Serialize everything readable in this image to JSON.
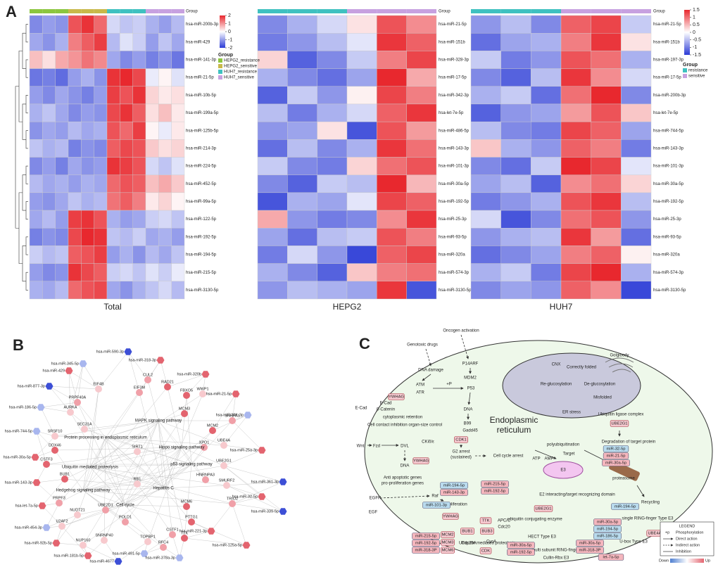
{
  "panels": {
    "a": "A",
    "b": "B",
    "c": "C"
  },
  "legends": [
    {
      "title": "Group",
      "lim": [
        -2,
        2
      ],
      "ticks": [
        2,
        1,
        0,
        -1,
        -2
      ],
      "groups": [
        {
          "name": "HEPG2_resistance",
          "color": "#8cc63f"
        },
        {
          "name": "HEPG2_sensitive",
          "color": "#c8b94a"
        },
        {
          "name": "HUH7_resistance",
          "color": "#3fc1c0"
        },
        {
          "name": "HUH7_sensitive",
          "color": "#c7a1e0"
        }
      ]
    },
    {
      "title": "Group",
      "lim": [
        -1.5,
        1.5
      ],
      "ticks": [
        1.5,
        1,
        0.5,
        0,
        -0.5,
        -1,
        -1.5
      ],
      "groups": [
        {
          "name": "resistance",
          "color": "#3fc1c0"
        },
        {
          "name": "sensitive",
          "color": "#c7a1e0"
        }
      ]
    }
  ],
  "heatmaps": [
    {
      "title": "Total",
      "group_label": "Group",
      "legend": 0,
      "column_groups": [
        0,
        0,
        0,
        1,
        1,
        1,
        2,
        2,
        2,
        3,
        3,
        3
      ],
      "rows": [
        "hsa-miR-200b-3p",
        "hsa-miR-429",
        "hsa-miR-141-3p",
        "hsa-miR-21-5p",
        "hsa-miR-10b-5p",
        "hsa-miR-199a-5p",
        "hsa-miR-125b-5p",
        "hsa-miR-214-3p",
        "hsa-miR-224-5p",
        "hsa-miR-452-5p",
        "hsa-miR-99a-5p",
        "hsa-miR-122-5p",
        "hsa-miR-192-5p",
        "hsa-miR-194-5p",
        "hsa-miR-215-5p",
        "hsa-miR-3130-5p"
      ],
      "values": [
        [
          -1.2,
          -1.0,
          -1.1,
          1.6,
          1.9,
          1.4,
          -0.4,
          -0.6,
          -0.5,
          -0.8,
          -1.0,
          -0.7
        ],
        [
          -0.9,
          -1.1,
          -0.8,
          1.2,
          1.5,
          1.8,
          -0.7,
          -0.3,
          -0.5,
          -1.0,
          -0.6,
          -0.9
        ],
        [
          0.6,
          0.3,
          0.8,
          1.0,
          1.3,
          1.1,
          -0.9,
          -1.2,
          -1.0,
          -1.3,
          -1.1,
          -1.4
        ],
        [
          -1.4,
          -1.3,
          -1.5,
          -1.0,
          -0.8,
          -1.1,
          1.9,
          2.0,
          1.7,
          -0.2,
          0.1,
          -0.3
        ],
        [
          -1.0,
          -1.2,
          -0.9,
          -1.1,
          -1.3,
          -1.0,
          1.8,
          1.6,
          1.9,
          0.4,
          0.2,
          0.3
        ],
        [
          -0.8,
          -0.6,
          -0.9,
          -1.2,
          -1.0,
          -1.1,
          1.7,
          1.9,
          1.5,
          0.3,
          0.6,
          0.2
        ],
        [
          -1.1,
          -0.9,
          -1.0,
          -0.7,
          -0.9,
          -0.8,
          1.6,
          1.4,
          1.8,
          0.1,
          -0.2,
          0.2
        ],
        [
          -0.6,
          -0.8,
          -0.7,
          -1.3,
          -1.1,
          -1.2,
          1.5,
          1.7,
          1.6,
          0.5,
          0.3,
          0.4
        ],
        [
          -1.2,
          -1.0,
          -1.3,
          -0.9,
          -1.1,
          -1.0,
          1.9,
          1.8,
          1.6,
          -0.4,
          -0.6,
          -0.3
        ],
        [
          -0.7,
          -0.9,
          -0.8,
          -1.0,
          -0.8,
          -0.9,
          1.4,
          1.6,
          1.5,
          0.6,
          0.8,
          0.5
        ],
        [
          -1.0,
          -1.1,
          -0.9,
          -0.6,
          -0.8,
          -0.7,
          1.3,
          1.5,
          1.2,
          0.2,
          0.4,
          0.1
        ],
        [
          -0.9,
          -0.7,
          -1.0,
          1.8,
          1.9,
          1.6,
          -0.8,
          -1.0,
          -0.9,
          -0.5,
          -0.4,
          -0.6
        ],
        [
          -1.3,
          -1.1,
          -1.2,
          1.7,
          2.0,
          1.9,
          -0.6,
          -0.7,
          -0.5,
          -0.9,
          -0.8,
          -1.0
        ],
        [
          -0.5,
          -0.7,
          -0.6,
          1.5,
          1.6,
          1.8,
          -1.0,
          -0.8,
          -1.1,
          -0.7,
          -0.9,
          -0.6
        ],
        [
          -1.0,
          -1.2,
          -1.1,
          1.9,
          1.7,
          1.5,
          -0.5,
          -0.4,
          -0.6,
          -0.3,
          -0.5,
          -0.2
        ],
        [
          -0.8,
          -0.9,
          -0.7,
          1.4,
          1.6,
          1.7,
          -0.9,
          -1.1,
          -0.8,
          -0.6,
          -0.4,
          -0.7
        ]
      ]
    },
    {
      "title": "HEPG2",
      "group_label": "Group",
      "legend": 1,
      "column_groups": [
        0,
        0,
        0,
        1,
        1,
        1
      ],
      "rows": [
        "hsa-miR-21-5p",
        "hsa-miR-151b",
        "hsa-miR-328-3p",
        "hsa-miR-17-5p",
        "hsa-miR-342-3p",
        "hsa-let-7e-5p",
        "hsa-miR-486-5p",
        "hsa-miR-143-3p",
        "hsa-miR-101-3p",
        "hsa-miR-30a-5p",
        "hsa-miR-192-5p",
        "hsa-miR-25-3p",
        "hsa-miR-93-5p",
        "hsa-miR-320a",
        "hsa-miR-574-3p",
        "hsa-miR-3130-5p"
      ],
      "values": [
        [
          -0.9,
          -0.6,
          -0.3,
          0.2,
          1.2,
          0.8
        ],
        [
          -1.0,
          -0.8,
          -0.5,
          -0.2,
          1.4,
          1.1
        ],
        [
          0.3,
          -1.2,
          -0.9,
          -0.4,
          0.9,
          1.3
        ],
        [
          -0.6,
          -0.9,
          -1.1,
          -0.7,
          1.5,
          0.6
        ],
        [
          -1.2,
          -0.4,
          -0.8,
          0.1,
          1.3,
          0.9
        ],
        [
          -0.5,
          -1.0,
          -0.6,
          -0.3,
          1.1,
          1.4
        ],
        [
          -0.8,
          -0.7,
          0.2,
          -1.3,
          1.2,
          0.7
        ],
        [
          -1.1,
          -0.5,
          -0.9,
          -0.6,
          1.4,
          1.0
        ],
        [
          -0.4,
          -0.9,
          -1.0,
          0.3,
          1.0,
          1.2
        ],
        [
          -0.9,
          -1.2,
          -0.4,
          -0.5,
          1.5,
          0.5
        ],
        [
          -1.3,
          -0.6,
          -0.7,
          -0.2,
          1.3,
          1.1
        ],
        [
          0.6,
          -0.8,
          -1.0,
          -0.9,
          0.8,
          1.4
        ],
        [
          -0.7,
          -1.1,
          -0.5,
          -0.4,
          1.2,
          0.9
        ],
        [
          -1.0,
          -0.3,
          -0.8,
          -1.4,
          1.1,
          1.3
        ],
        [
          -0.6,
          -0.9,
          -1.2,
          0.4,
          0.9,
          1.0
        ],
        [
          -0.8,
          -0.5,
          -0.6,
          -0.7,
          1.4,
          -1.3
        ]
      ]
    },
    {
      "title": "HUH7",
      "group_label": "Group",
      "legend": 1,
      "column_groups": [
        0,
        0,
        0,
        1,
        1,
        1
      ],
      "rows": [
        "hsa-miR-21-5p",
        "hsa-miR-151b",
        "hsa-miR-197-3p",
        "hsa-miR-17-5p",
        "hsa-miR-200b-3p",
        "hsa-let-7e-5p",
        "hsa-miR-744-5p",
        "hsa-miR-143-3p",
        "hsa-miR-101-3p",
        "hsa-miR-30a-5p",
        "hsa-miR-192-5p",
        "hsa-miR-25-3p",
        "hsa-miR-93-5p",
        "hsa-miR-320a",
        "hsa-miR-574-3p",
        "hsa-miR-3130-5p"
      ],
      "values": [
        [
          -0.8,
          -0.5,
          -0.9,
          1.1,
          1.3,
          -0.4
        ],
        [
          -1.1,
          -0.7,
          -0.6,
          0.9,
          1.4,
          0.2
        ],
        [
          -0.4,
          -1.0,
          -0.8,
          1.2,
          1.0,
          -0.6
        ],
        [
          -0.9,
          -1.2,
          -0.5,
          1.4,
          0.8,
          -0.3
        ],
        [
          -0.6,
          -0.4,
          -1.1,
          1.0,
          1.5,
          -0.9
        ],
        [
          -1.2,
          -0.8,
          -0.7,
          0.7,
          1.2,
          0.4
        ],
        [
          -0.5,
          -0.9,
          -1.0,
          1.3,
          1.1,
          -0.7
        ],
        [
          0.4,
          -0.6,
          -0.8,
          1.1,
          0.9,
          -1.0
        ],
        [
          -0.9,
          -1.1,
          -0.4,
          1.5,
          1.3,
          -0.2
        ],
        [
          -0.7,
          -0.5,
          -1.2,
          0.8,
          1.0,
          0.3
        ],
        [
          -1.0,
          -0.8,
          -0.6,
          1.2,
          1.4,
          -0.5
        ],
        [
          -0.3,
          -1.3,
          -0.9,
          1.0,
          1.2,
          -0.8
        ],
        [
          -0.8,
          -0.6,
          -0.5,
          1.4,
          0.7,
          -1.1
        ],
        [
          -1.1,
          -0.9,
          -0.7,
          0.9,
          1.1,
          0.1
        ],
        [
          -0.6,
          -0.4,
          -1.0,
          1.3,
          1.5,
          -0.6
        ],
        [
          -0.9,
          -0.7,
          -0.8,
          1.1,
          0.8,
          -1.4
        ]
      ]
    }
  ],
  "network": {
    "pathways": [
      "MAPK signaling pathway",
      "Protein processing in endoplasmic reticulum",
      "Hippo signaling pathway",
      "p53 signaling pathway",
      "Ubiquitin mediated proteolysis",
      "Hedgehog signaling pathway",
      "Cell cycle",
      "Hepatitis C"
    ],
    "nodes": [
      {
        "label": "hsa-miR-590-3p",
        "color": "#3d4fd6"
      },
      {
        "label": "hsa-miR-345-5p",
        "color": "#a8b6ee"
      },
      {
        "label": "hsa-miR-429",
        "color": "#e3646f"
      },
      {
        "label": "hsa-miR-877-3p",
        "color": "#3d4fd6"
      },
      {
        "label": "hsa-miR-186-5p",
        "color": "#a8b6ee"
      },
      {
        "label": "hsa-miR-744-5p",
        "color": "#a8b6ee"
      },
      {
        "label": "hsa-miR-30a-5p",
        "color": "#e3646f"
      },
      {
        "label": "hsa-miR-143-3p",
        "color": "#e3646f"
      },
      {
        "label": "hsa-let-7a-5p",
        "color": "#e3646f"
      },
      {
        "label": "hsa-miR-454-3p",
        "color": "#a8b6ee"
      },
      {
        "label": "hsa-miR-92b-5p",
        "color": "#e3646f"
      },
      {
        "label": "hsa-miR-181b-5p",
        "color": "#e3646f"
      },
      {
        "label": "hsa-miR-4677",
        "color": "#3d4fd6"
      },
      {
        "label": "hsa-miR-491-5p",
        "color": "#a8b6ee"
      },
      {
        "label": "hsa-miR-378a-3p",
        "color": "#a8b6ee"
      },
      {
        "label": "hsa-miR-221-3p",
        "color": "#e3646f"
      },
      {
        "label": "hsa-miR-125a-5p",
        "color": "#e3646f"
      },
      {
        "label": "hsa-miR-339-5p",
        "color": "#3d4fd6"
      },
      {
        "label": "hsa-miR-32-5p",
        "color": "#e3646f"
      },
      {
        "label": "hsa-miR-361-3p",
        "color": "#3d4fd6"
      },
      {
        "label": "hsa-miR-25a-3p",
        "color": "#e3646f"
      },
      {
        "label": "hsa-miR-101-3p",
        "color": "#a8b6ee"
      },
      {
        "label": "hsa-miR-21-5p",
        "color": "#e3646f"
      },
      {
        "label": "hsa-miR-320b",
        "color": "#e3646f"
      },
      {
        "label": "hsa-miR-318-3p",
        "color": "#e3646f"
      },
      {
        "label": "CUL2",
        "color": "#f0a0a8"
      },
      {
        "label": "RAD21",
        "color": "#e3646f"
      },
      {
        "label": "FBXO5",
        "color": "#e3646f"
      },
      {
        "label": "EIF3M",
        "color": "#f0a0a8"
      },
      {
        "label": "EIF4B",
        "color": "#f7c9cd"
      },
      {
        "label": "PRPF40A",
        "color": "#f0a0a8"
      },
      {
        "label": "AURKA",
        "color": "#f7c9cd"
      },
      {
        "label": "SEC31A",
        "color": "#f7c9cd"
      },
      {
        "label": "SRSF10",
        "color": "#f7c9cd"
      },
      {
        "label": "DDX46",
        "color": "#e3646f"
      },
      {
        "label": "CSTF3",
        "color": "#e3646f"
      },
      {
        "label": "BUB1",
        "color": "#e3646f"
      },
      {
        "label": "PRPF3",
        "color": "#f0a0a8"
      },
      {
        "label": "NUDT21",
        "color": "#f7c9cd"
      },
      {
        "label": "U2AF2",
        "color": "#f7c9cd"
      },
      {
        "label": "NUP160",
        "color": "#f7c9cd"
      },
      {
        "label": "SNRNP40",
        "color": "#f7c9cd"
      },
      {
        "label": "POLD1",
        "color": "#f0a0a8"
      },
      {
        "label": "UBE2D1",
        "color": "#f0a0a8"
      },
      {
        "label": "SIRT1",
        "color": "#f7c9cd"
      },
      {
        "label": "RB1",
        "color": "#f7c9cd"
      },
      {
        "label": "MCM3",
        "color": "#e3646f"
      },
      {
        "label": "MCM2",
        "color": "#e3646f"
      },
      {
        "label": "SNRPA1",
        "color": "#f0a0a8"
      },
      {
        "label": "UBE4A",
        "color": "#f7c9cd"
      },
      {
        "label": "UBE2G1",
        "color": "#f7c9cd"
      },
      {
        "label": "HNRNPA3",
        "color": "#f0a0a8"
      },
      {
        "label": "SMURF2",
        "color": "#f7c9cd"
      },
      {
        "label": "TRIO2",
        "color": "#f0a0a8"
      },
      {
        "label": "MCM6",
        "color": "#e3646f"
      },
      {
        "label": "PTTG1",
        "color": "#e3646f"
      },
      {
        "label": "TTK",
        "color": "#e3646f"
      },
      {
        "label": "CSTF1",
        "color": "#f0a0a8"
      },
      {
        "label": "TOPBP1",
        "color": "#f7c9cd"
      },
      {
        "label": "XPO1",
        "color": "#f0a0a8"
      },
      {
        "label": "WWP1",
        "color": "#f7c9cd"
      },
      {
        "label": "RFC4",
        "color": "#f0a0a8"
      }
    ]
  },
  "pathway": {
    "labels": [
      "Oncogen activation",
      "Genotoxic drugs",
      "DNA damage",
      "P14ARF",
      "MDM2",
      "ATM",
      "ATR",
      "+P",
      "P53",
      "DNA",
      "B99",
      "Gadd45",
      "E-Cad",
      "E-Cad",
      "β-Catenin",
      "cytoplasmic retention",
      "Cell contact inhibition organ-size control",
      "Endoplasmic",
      "reticulum",
      "Wnt",
      "Fzd",
      "DVL",
      "CKIδ/ε",
      "DNA",
      "Anti apoptotic genes",
      "pro-proliferation genes",
      "G2 arrest",
      "(sustained)",
      "Cell cycle arrest",
      "EGFR",
      "EGF",
      "Raf",
      "Cell proliferation",
      "Golgibody",
      "CNX",
      "Correctly folded",
      "Re-glucosylation",
      "De-glucosylation",
      "Misfolded",
      "ER stress",
      "Ubiquitin ligase complex",
      "Degradation of target protein",
      "polyubiquitination",
      "Target",
      "E3",
      "proteasome",
      "E2 interacting/target recognizing domain",
      "Recycling",
      "single RING-finger Type E3",
      "ATP",
      "AMP",
      "ubiquitin conjugating enzyme",
      "HECT Type E3",
      "Ubiquitin mediated proteolysis",
      "multi subunit RING-finger type E3",
      "Cullin-Rbx E3",
      "U-box Type E3",
      "APC/C",
      "Cdc20",
      "Cdc25A",
      "CycA"
    ],
    "proteins": [
      "YWHAG",
      "YWHAG",
      "CDK1",
      "YWHAG",
      "TTK",
      "BUB1",
      "BUB3",
      "MCM2",
      "MCM3",
      "MCM6",
      "CDK",
      "UBE2G1",
      "UBE2G1",
      "UBE4A"
    ],
    "mirnas": [
      {
        "label": "miR-194-5p",
        "color": "#b9dbee"
      },
      {
        "label": "miR-143-3p",
        "color": "#f4b6bd"
      },
      {
        "label": "miR-215-5p",
        "color": "#f4b6bd"
      },
      {
        "label": "miR-192-5p",
        "color": "#f4b6bd"
      },
      {
        "label": "miR-101-3p",
        "color": "#b9dbee"
      },
      {
        "label": "miR-215-5p",
        "color": "#f4b6bd"
      },
      {
        "label": "miR-192-5p",
        "color": "#f4b6bd"
      },
      {
        "label": "miR-318-3P",
        "color": "#f4b6bd"
      },
      {
        "label": "miR-30a-5p",
        "color": "#f4b6bd"
      },
      {
        "label": "miR-192-5p",
        "color": "#f4b6bd"
      },
      {
        "label": "miR-32-5p",
        "color": "#b9dbee"
      },
      {
        "label": "miR-21-5p",
        "color": "#f4b6bd"
      },
      {
        "label": "miR-30a-5p",
        "color": "#f4b6bd"
      },
      {
        "label": "miR-194-5p",
        "color": "#b9dbee"
      },
      {
        "label": "miR-30a-5p",
        "color": "#f4b6bd"
      },
      {
        "label": "miR-194-5p",
        "color": "#b9dbee"
      },
      {
        "label": "miR-186-5p",
        "color": "#b9dbee"
      },
      {
        "label": "miR-30a-5p",
        "color": "#f4b6bd"
      },
      {
        "label": "miR-318-3P",
        "color": "#f4b6bd"
      },
      {
        "label": "let-7a-5p",
        "color": "#f4b6bd"
      }
    ],
    "legend": {
      "title": "LEGEND",
      "symbol": "+p",
      "items": [
        "Phosphorylation",
        "Direct action",
        "Indirect action",
        "Inhibition"
      ],
      "low": "Down",
      "high": "Up",
      "low_color": "#4f7fd0",
      "high_color": "#e3646f"
    }
  }
}
